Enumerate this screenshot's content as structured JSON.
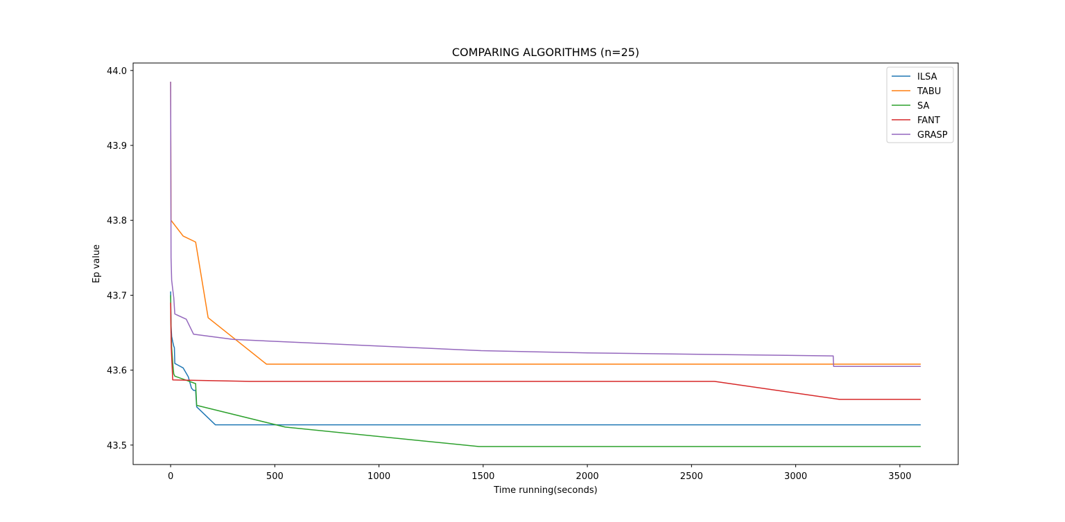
{
  "chart_data": {
    "type": "line",
    "title": "COMPARING ALGORITHMS (n=25)",
    "xlabel": "Time running(seconds)",
    "ylabel": "Ep value",
    "xlim": [
      -180,
      3780
    ],
    "ylim": [
      43.474,
      44.01
    ],
    "xticks": [
      0,
      500,
      1000,
      1500,
      2000,
      2500,
      3000,
      3500
    ],
    "yticks": [
      43.5,
      43.6,
      43.7,
      43.8,
      43.9,
      44.0
    ],
    "xtick_labels": [
      "0",
      "500",
      "1000",
      "1500",
      "2000",
      "2500",
      "3000",
      "3500"
    ],
    "ytick_labels": [
      "43.5",
      "43.6",
      "43.7",
      "43.8",
      "43.9",
      "44.0"
    ],
    "grid": false,
    "legend_position": "top-right",
    "series": [
      {
        "name": "ILSA",
        "color": "#1f77b4",
        "x": [
          0,
          2,
          5,
          10,
          15,
          18,
          20,
          60,
          85,
          100,
          110,
          120,
          125,
          215,
          3600
        ],
        "y": [
          43.705,
          43.66,
          43.645,
          43.638,
          43.632,
          43.63,
          43.609,
          43.603,
          43.591,
          43.576,
          43.573,
          43.573,
          43.551,
          43.527,
          43.527
        ]
      },
      {
        "name": "TABU",
        "color": "#ff7f0e",
        "x": [
          0,
          2,
          60,
          120,
          180,
          460,
          3600
        ],
        "y": [
          43.985,
          43.8,
          43.779,
          43.771,
          43.67,
          43.608,
          43.608
        ]
      },
      {
        "name": "SA",
        "color": "#2ca02c",
        "x": [
          0,
          2,
          5,
          10,
          15,
          20,
          120,
          125,
          550,
          1480,
          3600
        ],
        "y": [
          43.7,
          43.65,
          43.63,
          43.61,
          43.595,
          43.592,
          43.582,
          43.553,
          43.524,
          43.498,
          43.498
        ]
      },
      {
        "name": "FANT",
        "color": "#d62728",
        "x": [
          0,
          3,
          8,
          10,
          380,
          2610,
          3210,
          3600
        ],
        "y": [
          43.69,
          43.63,
          43.6,
          43.587,
          43.585,
          43.585,
          43.561,
          43.561
        ]
      },
      {
        "name": "GRASP",
        "color": "#9467bd",
        "x": [
          0,
          2,
          5,
          10,
          15,
          20,
          75,
          110,
          300,
          1490,
          2000,
          3180,
          3182,
          3600
        ],
        "y": [
          43.985,
          43.75,
          43.72,
          43.708,
          43.697,
          43.675,
          43.668,
          43.648,
          43.641,
          43.626,
          43.623,
          43.619,
          43.605,
          43.605
        ]
      }
    ]
  }
}
